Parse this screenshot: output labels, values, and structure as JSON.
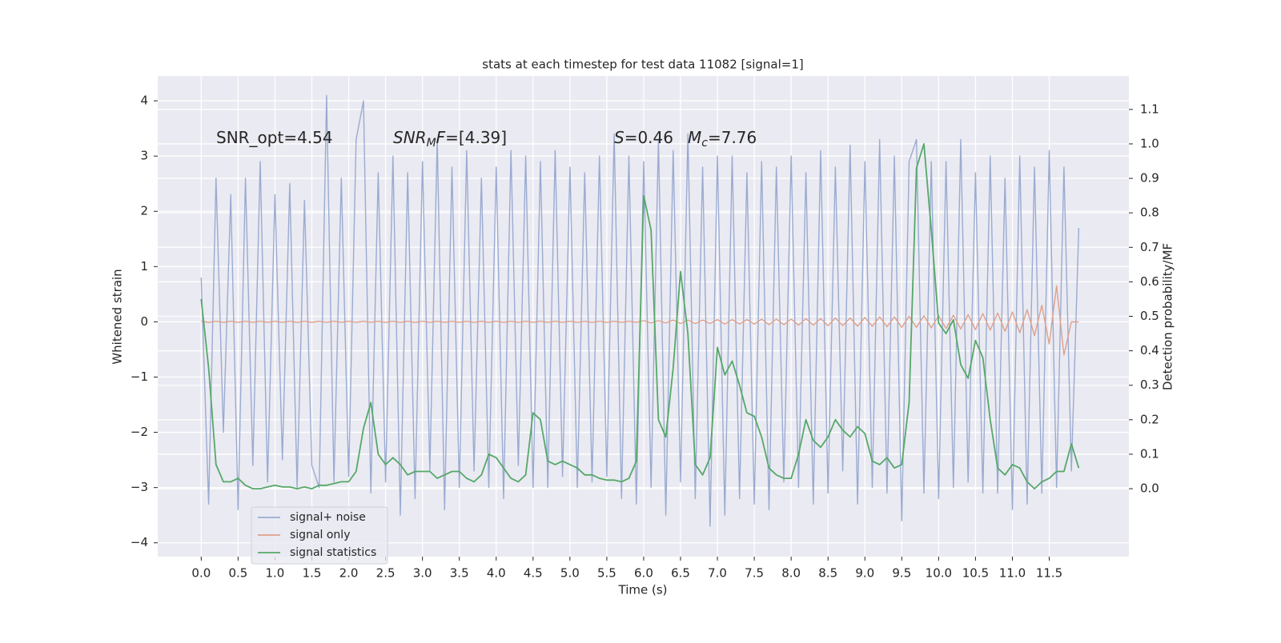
{
  "chart_data": {
    "type": "line",
    "title": "stats at each timestep for test data 11082 [signal=1]",
    "xlabel": "Time (s)",
    "ylabel": "Whitened strain",
    "y2label": "Detection probability/MF",
    "grid": true,
    "legend": "lower left",
    "xlim": [
      -0.59,
      12.58
    ],
    "xticks": [
      {
        "value": 0,
        "label": "0.0"
      },
      0.5,
      {
        "value": 1,
        "label": "1.0"
      },
      1.5,
      {
        "value": 2,
        "label": "2.0"
      },
      2.5,
      {
        "value": 3,
        "label": "3.0"
      },
      3.5,
      {
        "value": 4,
        "label": "4.0"
      },
      4.5,
      {
        "value": 5,
        "label": "5.0"
      },
      5.5,
      {
        "value": 6,
        "label": "6.0"
      },
      6.5,
      {
        "value": 7,
        "label": "7.0"
      },
      7.5,
      {
        "value": 8,
        "label": "8.0"
      },
      8.5,
      {
        "value": 9,
        "label": "9.0"
      },
      9.5,
      {
        "value": 10,
        "label": "10.0"
      },
      10.5,
      {
        "value": 11,
        "label": "11.0"
      },
      11.5
    ],
    "ylim": [
      -4.25,
      4.45
    ],
    "yticks": [
      {
        "value": -4,
        "label": "−4"
      },
      {
        "value": -3,
        "label": "−3"
      },
      {
        "value": -2,
        "label": "−2"
      },
      {
        "value": -1,
        "label": "−1"
      },
      0,
      1,
      2,
      3,
      4
    ],
    "y2lim": [
      -0.197,
      1.197
    ],
    "y2ticks": [
      {
        "value": 0,
        "label": "0.0"
      },
      0.1,
      0.2,
      0.3,
      0.4,
      0.5,
      0.6,
      0.7,
      0.8,
      0.9,
      {
        "value": 1,
        "label": "1.0"
      },
      1.1
    ],
    "annotations": [
      {
        "parts": [
          {
            "text": "SNR_opt=4.54"
          }
        ]
      },
      {
        "parts": [
          {
            "text": "SNR",
            "style": "italic"
          },
          {
            "text": "M",
            "style": "italic-sub"
          },
          {
            "text": "F",
            "style": "italic"
          },
          {
            "text": "=[4.39]"
          }
        ]
      },
      {
        "parts": [
          {
            "text": "S",
            "style": "italic"
          },
          {
            "text": "=0.46"
          }
        ]
      },
      {
        "parts": [
          {
            "text": "M",
            "style": "italic"
          },
          {
            "text": "c",
            "style": "italic-sub"
          },
          {
            "text": "=7.76"
          }
        ]
      }
    ],
    "x": [
      0,
      0.1,
      0.2,
      0.3,
      0.4,
      0.5,
      0.6,
      0.7,
      0.8,
      0.9,
      1,
      1.1,
      1.2,
      1.3,
      1.4,
      1.5,
      1.6,
      1.7,
      1.8,
      1.9,
      2,
      2.1,
      2.2,
      2.3,
      2.4,
      2.5,
      2.6,
      2.7,
      2.8,
      2.9,
      3,
      3.1,
      3.2,
      3.3,
      3.4,
      3.5,
      3.6,
      3.7,
      3.8,
      3.9,
      4,
      4.1,
      4.2,
      4.3,
      4.4,
      4.5,
      4.6,
      4.7,
      4.8,
      4.9,
      5,
      5.1,
      5.2,
      5.3,
      5.4,
      5.5,
      5.6,
      5.7,
      5.8,
      5.9,
      6,
      6.1,
      6.2,
      6.3,
      6.4,
      6.5,
      6.6,
      6.7,
      6.8,
      6.9,
      7,
      7.1,
      7.2,
      7.3,
      7.4,
      7.5,
      7.6,
      7.7,
      7.8,
      7.9,
      8,
      8.1,
      8.2,
      8.3,
      8.4,
      8.5,
      8.6,
      8.7,
      8.8,
      8.9,
      9,
      9.1,
      9.2,
      9.3,
      9.4,
      9.5,
      9.6,
      9.7,
      9.8,
      9.9,
      10,
      10.1,
      10.2,
      10.3,
      10.4,
      10.5,
      10.6,
      10.7,
      10.8,
      10.9,
      11,
      11.1,
      11.2,
      11.3,
      11.4,
      11.5,
      11.6,
      11.7,
      11.8,
      11.9
    ],
    "series": [
      {
        "name": "signal+ noise",
        "color": "#9aabd1",
        "values": [
          0.8,
          -3.3,
          2.6,
          -2.0,
          2.3,
          -3.4,
          2.6,
          -2.6,
          2.9,
          -2.9,
          2.3,
          -2.5,
          2.5,
          -3.0,
          2.2,
          -2.6,
          -3.0,
          4.1,
          -2.9,
          2.6,
          -2.8,
          3.3,
          4.0,
          -3.1,
          2.7,
          -2.9,
          3.0,
          -3.5,
          2.7,
          -3.2,
          2.9,
          -2.7,
          3.3,
          -3.4,
          2.8,
          -3.0,
          3.1,
          -2.7,
          2.6,
          -3.0,
          2.8,
          -3.2,
          3.1,
          -2.6,
          3.0,
          -3.0,
          2.9,
          -3.0,
          3.1,
          -2.8,
          2.8,
          -3.0,
          2.7,
          -2.9,
          3.0,
          -2.8,
          3.4,
          -3.2,
          3.0,
          -3.3,
          2.9,
          -3.0,
          3.3,
          -3.5,
          3.1,
          -2.9,
          3.4,
          -3.2,
          2.8,
          -3.7,
          3.0,
          -3.5,
          3.0,
          -3.2,
          2.7,
          -3.3,
          2.9,
          -3.4,
          2.8,
          -2.9,
          3.0,
          -3.0,
          2.7,
          -3.3,
          3.1,
          -3.1,
          2.8,
          -2.7,
          3.2,
          -3.3,
          2.9,
          -3.0,
          3.3,
          -3.1,
          3.0,
          -3.6,
          2.9,
          3.3,
          -3.1,
          2.9,
          -3.2,
          2.9,
          -3.0,
          3.3,
          -2.9,
          2.7,
          -3.1,
          3.0,
          -3.1,
          2.6,
          -3.4,
          3.0,
          -3.3,
          2.8,
          -3.1,
          3.1,
          -3.0,
          2.8,
          -2.7,
          1.7
        ]
      },
      {
        "name": "signal only",
        "color": "#dfa08a",
        "values": [
          0.01,
          -0.01,
          0.01,
          -0.01,
          0.01,
          -0.01,
          0.01,
          -0.01,
          0.01,
          -0.01,
          0.01,
          -0.01,
          0.01,
          -0.01,
          0.01,
          -0.01,
          0.01,
          -0.01,
          0.01,
          -0.01,
          0.01,
          -0.01,
          0.01,
          -0.01,
          0.01,
          -0.01,
          0.01,
          -0.01,
          0.01,
          -0.01,
          0.01,
          -0.01,
          0.01,
          -0.01,
          0.01,
          -0.01,
          0.01,
          -0.01,
          0.01,
          -0.01,
          0.01,
          -0.01,
          0.01,
          -0.01,
          0.01,
          -0.01,
          0.01,
          -0.01,
          0.01,
          -0.01,
          0.01,
          -0.01,
          0.01,
          -0.01,
          0.01,
          -0.01,
          0.01,
          -0.01,
          0.01,
          -0.01,
          0.02,
          -0.02,
          0.02,
          -0.02,
          0.03,
          -0.03,
          0.03,
          -0.03,
          0.03,
          -0.03,
          0.04,
          -0.04,
          0.04,
          -0.04,
          0.04,
          -0.04,
          0.05,
          -0.05,
          0.05,
          -0.05,
          0.05,
          -0.06,
          0.06,
          -0.06,
          0.06,
          -0.07,
          0.07,
          -0.07,
          0.07,
          -0.08,
          0.08,
          -0.08,
          0.09,
          -0.09,
          0.09,
          -0.1,
          0.1,
          -0.1,
          0.11,
          -0.11,
          0.11,
          -0.12,
          0.12,
          -0.13,
          0.13,
          -0.14,
          0.15,
          -0.15,
          0.16,
          -0.17,
          0.18,
          -0.2,
          0.22,
          -0.25,
          0.3,
          -0.4,
          0.65,
          -0.6,
          0,
          0
        ]
      },
      {
        "name": "signal statistics",
        "color": "#55a868",
        "axis": "y2",
        "values": [
          0.55,
          0.35,
          0.07,
          0.02,
          0.02,
          0.03,
          0.01,
          0,
          0,
          0.005,
          0.01,
          0.005,
          0.005,
          0,
          0.005,
          0,
          0.01,
          0.01,
          0.015,
          0.02,
          0.02,
          0.05,
          0.175,
          0.25,
          0.1,
          0.07,
          0.09,
          0.07,
          0.04,
          0.05,
          0.05,
          0.05,
          0.03,
          0.04,
          0.05,
          0.05,
          0.03,
          0.02,
          0.04,
          0.1,
          0.09,
          0.06,
          0.03,
          0.02,
          0.04,
          0.22,
          0.2,
          0.08,
          0.07,
          0.08,
          0.07,
          0.06,
          0.04,
          0.04,
          0.03,
          0.025,
          0.025,
          0.02,
          0.03,
          0.08,
          0.85,
          0.75,
          0.2,
          0.15,
          0.35,
          0.63,
          0.45,
          0.07,
          0.04,
          0.09,
          0.41,
          0.33,
          0.37,
          0.3,
          0.22,
          0.21,
          0.15,
          0.06,
          0.04,
          0.03,
          0.03,
          0.1,
          0.2,
          0.14,
          0.12,
          0.15,
          0.2,
          0.17,
          0.15,
          0.18,
          0.16,
          0.08,
          0.07,
          0.09,
          0.06,
          0.07,
          0.25,
          0.93,
          1.0,
          0.75,
          0.48,
          0.45,
          0.49,
          0.36,
          0.32,
          0.43,
          0.38,
          0.2,
          0.06,
          0.04,
          0.07,
          0.06,
          0.02,
          0,
          0.02,
          0.03,
          0.05,
          0.05,
          0.13,
          0.06
        ]
      }
    ]
  }
}
